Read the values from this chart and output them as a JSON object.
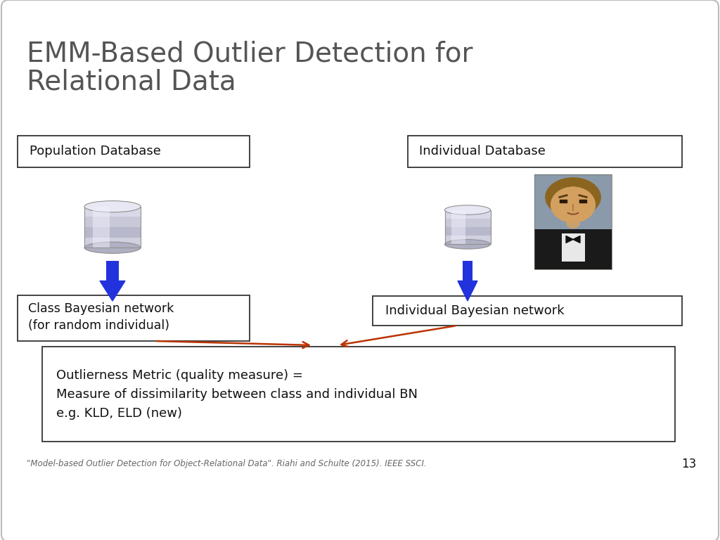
{
  "title_line1": "EMM-Based Outlier Detection for",
  "title_line2": "Relational Data",
  "title_color": "#555555",
  "title_fontsize": 28,
  "background_color": "#ffffff",
  "pop_db_label": "Population Database",
  "ind_db_label": "Individual Database",
  "class_bn_label": "Class Bayesian network\n(for random individual)",
  "ind_bn_label": "Individual Bayesian network",
  "outlier_label": "Outlierness Metric (quality measure) =\nMeasure of dissimilarity between class and individual BN\ne.g. KLD, ELD (new)",
  "footer": "\"Model-based Outlier Detection for Object-Relational Data\". Riahi and Schulte (2015). IEEE SSCI.",
  "page_num": "13",
  "arrow_color_blue": "#2233dd",
  "arrow_color_red": "#bb3300",
  "box_edge_color": "#222222",
  "text_color": "#111111",
  "text_fontsize": 13,
  "footer_fontsize": 8.5
}
